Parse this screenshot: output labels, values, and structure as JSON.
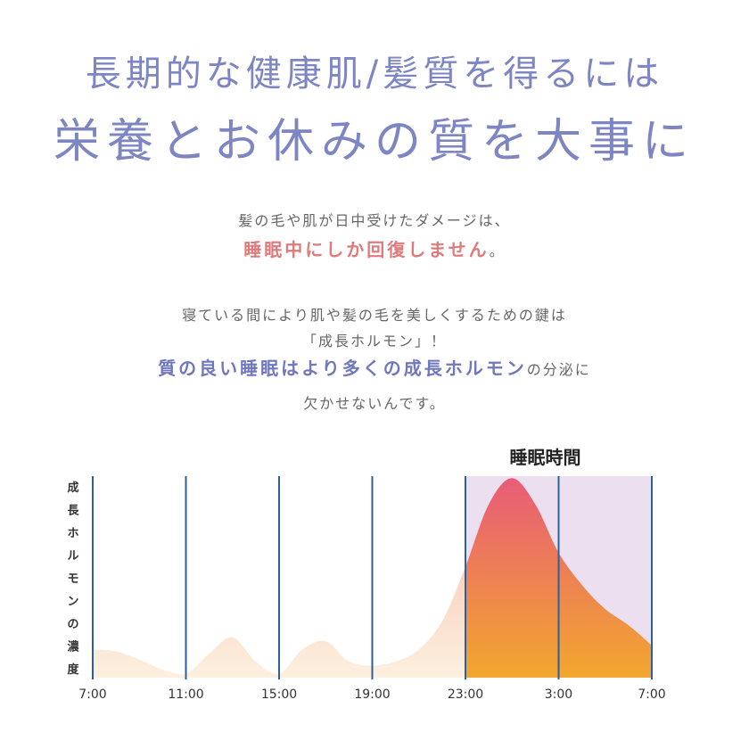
{
  "headline": {
    "line1": "長期的な健康肌/髪質を得るには",
    "line2": "栄養とお休みの質を大事に"
  },
  "intro": {
    "line1": "髪の毛や肌が日中受けたダメージは、",
    "line2_emph": "睡眠中にしか回復しません",
    "line2_end": "。"
  },
  "body": {
    "line1": "寝ている間により肌や髪の毛を美しくするための鍵は",
    "line2": "「成長ホルモン」！",
    "line3_emph": "質の良い睡眠はより多くの成長ホルモン",
    "line3_end": "の分泌に",
    "line4": "欠かせないんです。"
  },
  "chart_data": {
    "type": "area",
    "ylabel": "成長ホルモンの濃度",
    "x_ticks": [
      "7:00",
      "11:00",
      "15:00",
      "19:00",
      "23:00",
      "3:00",
      "7:00"
    ],
    "x_hours": [
      0,
      4,
      8,
      12,
      16,
      20,
      24
    ],
    "ylim": [
      0,
      100
    ],
    "highlight_band": {
      "label": "睡眠時間",
      "from_hour": 16,
      "to_hour": 24
    },
    "series": [
      {
        "x": [
          0,
          1,
          2,
          3,
          4,
          5,
          6,
          7,
          8,
          9,
          10,
          11,
          12,
          13,
          14,
          15,
          16,
          17,
          18,
          19,
          20,
          21,
          22,
          23,
          24
        ],
        "values": [
          14,
          13,
          9,
          4,
          2,
          12,
          20,
          8,
          2,
          14,
          18,
          8,
          6,
          8,
          14,
          28,
          55,
          86,
          99,
          86,
          62,
          46,
          34,
          26,
          16
        ]
      }
    ],
    "grid": true
  },
  "colors": {
    "headline": "#7d85c2",
    "emph_pink": "#e07a7a",
    "emph_blue": "#6f77bd",
    "band": "#ece0f0",
    "vline": "#2d5f9a",
    "area_top": "#e85c78",
    "area_bottom": "#f2a72e",
    "area_light": "#fbe2c6"
  }
}
